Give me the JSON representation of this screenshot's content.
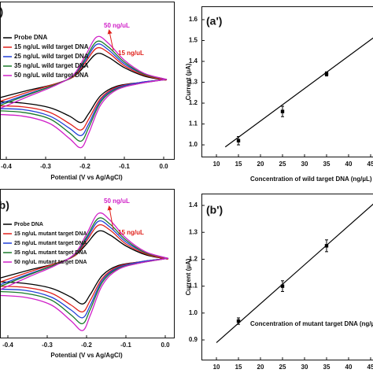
{
  "chart_data": [
    {
      "type": "line",
      "panel_label": "(a)",
      "x_label": "Potential (V vs Ag/AgCl)",
      "x": [
        -0.45,
        -0.35,
        -0.28,
        -0.23,
        -0.2,
        -0.17,
        -0.14,
        -0.1,
        -0.05,
        0,
        0,
        -0.06,
        -0.12,
        -0.16,
        -0.19,
        -0.21,
        -0.24,
        -0.29,
        -0.36,
        -0.45
      ],
      "xlim": [
        -0.416,
        0.028
      ],
      "xticks": [
        -0.4,
        -0.3,
        -0.2,
        -0.1,
        {
          "value": 0,
          "label": "0.0"
        }
      ],
      "ylim": [
        -8.5,
        8.5
      ],
      "legend": "upper left",
      "series": [
        {
          "name": "Probe DNA",
          "color": "#000000",
          "values": [
            -2.2,
            -1.1,
            -0.4,
            0.4,
            1.6,
            2.9,
            2.5,
            1.4,
            0.5,
            0.1,
            0.1,
            -0.2,
            -0.6,
            -1.6,
            -3.5,
            -4.5,
            -3.8,
            -2.9,
            -2.4,
            -2.2
          ]
        },
        {
          "name": "15 ng/uL wild target DNA",
          "color": "#e0201a",
          "values": [
            -2.7,
            -1.3,
            -0.4,
            0.4,
            1.9,
            3.5,
            3.0,
            1.6,
            0.6,
            0.1,
            0.1,
            -0.2,
            -0.7,
            -1.9,
            -4.1,
            -5.3,
            -4.6,
            -3.4,
            -2.8,
            -2.7
          ]
        },
        {
          "name": "25 ng/uL wild target DNA",
          "color": "#1f3fd8",
          "values": [
            -3.0,
            -1.5,
            -0.5,
            0.5,
            2.1,
            3.9,
            3.3,
            1.8,
            0.7,
            0.2,
            0.1,
            -0.2,
            -0.8,
            -2.1,
            -4.6,
            -5.9,
            -5.1,
            -3.8,
            -3.1,
            -3.0
          ]
        },
        {
          "name": "35 ng/uL wild target DNA",
          "color": "#1a7a2a",
          "values": [
            -3.2,
            -1.6,
            -0.5,
            0.5,
            2.3,
            4.2,
            3.6,
            2.0,
            0.7,
            0.2,
            0.1,
            -0.3,
            -0.9,
            -2.3,
            -5.0,
            -6.5,
            -5.6,
            -4.1,
            -3.4,
            -3.2
          ]
        },
        {
          "name": "50 ng/uL wild target DNA",
          "color": "#d020c8",
          "values": [
            -3.6,
            -1.8,
            -0.6,
            0.6,
            2.6,
            4.7,
            4.0,
            2.2,
            0.8,
            0.2,
            0.1,
            -0.3,
            -1.0,
            -2.6,
            -5.6,
            -7.2,
            -6.2,
            -4.6,
            -3.8,
            -3.6
          ]
        }
      ],
      "annotations": [
        {
          "text": "50 ng/uL",
          "color": "#d020c8"
        },
        {
          "text": "15 ng/uL",
          "color": "#e0201a"
        }
      ]
    },
    {
      "type": "scatter",
      "panel_label": "(a')",
      "x_label": "Concentration of wild target DNA (ng/µL)",
      "y_label": "Current (µA)",
      "xlim": [
        6.6,
        48.4
      ],
      "ylim": [
        0.94,
        1.664
      ],
      "xticks": [
        10,
        15,
        20,
        25,
        30,
        35,
        40,
        45
      ],
      "yticks": [
        {
          "value": 1,
          "label": "1.0"
        },
        1.1,
        1.2,
        1.3,
        1.4,
        1.5,
        1.6
      ],
      "series": [
        {
          "x": [
            15,
            25,
            35
          ],
          "values": [
            1.02,
            1.16,
            1.34
          ],
          "errors": [
            0.02,
            0.025,
            0.01
          ],
          "color": "#000000"
        }
      ],
      "fit": {
        "x": [
          12,
          48
        ],
        "values": [
          0.99,
          1.55
        ],
        "color": "#000000"
      }
    },
    {
      "type": "line",
      "panel_label": "(b)",
      "x_label": "Potential (V vs Ag/AgCl)",
      "x": [
        -0.45,
        -0.35,
        -0.28,
        -0.23,
        -0.2,
        -0.17,
        -0.14,
        -0.1,
        -0.05,
        0,
        0,
        -0.06,
        -0.12,
        -0.16,
        -0.19,
        -0.21,
        -0.24,
        -0.29,
        -0.36,
        -0.45
      ],
      "xlim": [
        -0.42,
        0.024
      ],
      "xticks": [
        -0.4,
        -0.3,
        -0.2,
        -0.1,
        {
          "value": 0,
          "label": "0.0"
        }
      ],
      "ylim": [
        -8,
        7.2
      ],
      "legend": "upper left",
      "series": [
        {
          "name": "Probe DNA",
          "color": "#000000",
          "values": [
            -2.2,
            -1.1,
            -0.4,
            0.4,
            1.6,
            2.9,
            2.5,
            1.4,
            0.5,
            0.1,
            0.1,
            -0.2,
            -0.6,
            -1.6,
            -3.5,
            -4.5,
            -3.8,
            -2.9,
            -2.4,
            -2.2
          ]
        },
        {
          "name": "15 ng/uL mutant target DNA",
          "color": "#e0201a",
          "values": [
            -2.7,
            -1.3,
            -0.4,
            0.4,
            1.9,
            3.5,
            3.0,
            1.6,
            0.6,
            0.1,
            0.1,
            -0.2,
            -0.7,
            -1.9,
            -4.1,
            -5.3,
            -4.6,
            -3.4,
            -2.8,
            -2.7
          ]
        },
        {
          "name": "25 ng/uL mutant target DNA",
          "color": "#1f3fd8",
          "values": [
            -3.0,
            -1.5,
            -0.5,
            0.5,
            2.1,
            3.9,
            3.3,
            1.8,
            0.7,
            0.2,
            0.1,
            -0.2,
            -0.8,
            -2.1,
            -4.6,
            -5.9,
            -5.1,
            -3.8,
            -3.1,
            -3.0
          ]
        },
        {
          "name": "35 ng/uL mutant target DNA",
          "color": "#1a7a2a",
          "values": [
            -3.2,
            -1.6,
            -0.5,
            0.5,
            2.3,
            4.2,
            3.6,
            2.0,
            0.7,
            0.2,
            0.1,
            -0.3,
            -0.9,
            -2.3,
            -5.0,
            -6.5,
            -5.6,
            -4.1,
            -3.4,
            -3.2
          ]
        },
        {
          "name": "50 ng/uL mutant target DNA",
          "color": "#d020c8",
          "values": [
            -3.6,
            -1.8,
            -0.6,
            0.6,
            2.6,
            4.7,
            4.0,
            2.2,
            0.8,
            0.2,
            0.1,
            -0.3,
            -1.0,
            -2.6,
            -5.6,
            -7.2,
            -6.2,
            -4.6,
            -3.8,
            -3.6
          ]
        }
      ],
      "annotations": [
        {
          "text": "50 ng/uL",
          "color": "#d020c8"
        },
        {
          "text": "15 ng/uL",
          "color": "#e0201a"
        }
      ]
    },
    {
      "type": "scatter",
      "panel_label": "(b')",
      "x_label": "Concentration of mutant target DNA (ng/µL)",
      "y_label": "Current (µA)",
      "xlim": [
        6.6,
        48.4
      ],
      "ylim": [
        0.824,
        1.444
      ],
      "xticks": [
        10,
        15,
        20,
        25,
        30,
        35,
        40,
        45
      ],
      "yticks": [
        0.9,
        {
          "value": 1,
          "label": "1.0"
        },
        1.1,
        1.2,
        1.3,
        1.4
      ],
      "series": [
        {
          "x": [
            15,
            25,
            35
          ],
          "values": [
            0.97,
            1.1,
            1.25
          ],
          "errors": [
            0.012,
            0.02,
            0.022
          ],
          "color": "#000000"
        }
      ],
      "fit": {
        "x": [
          10,
          48
        ],
        "values": [
          0.89,
          1.44
        ],
        "color": "#000000"
      }
    }
  ]
}
